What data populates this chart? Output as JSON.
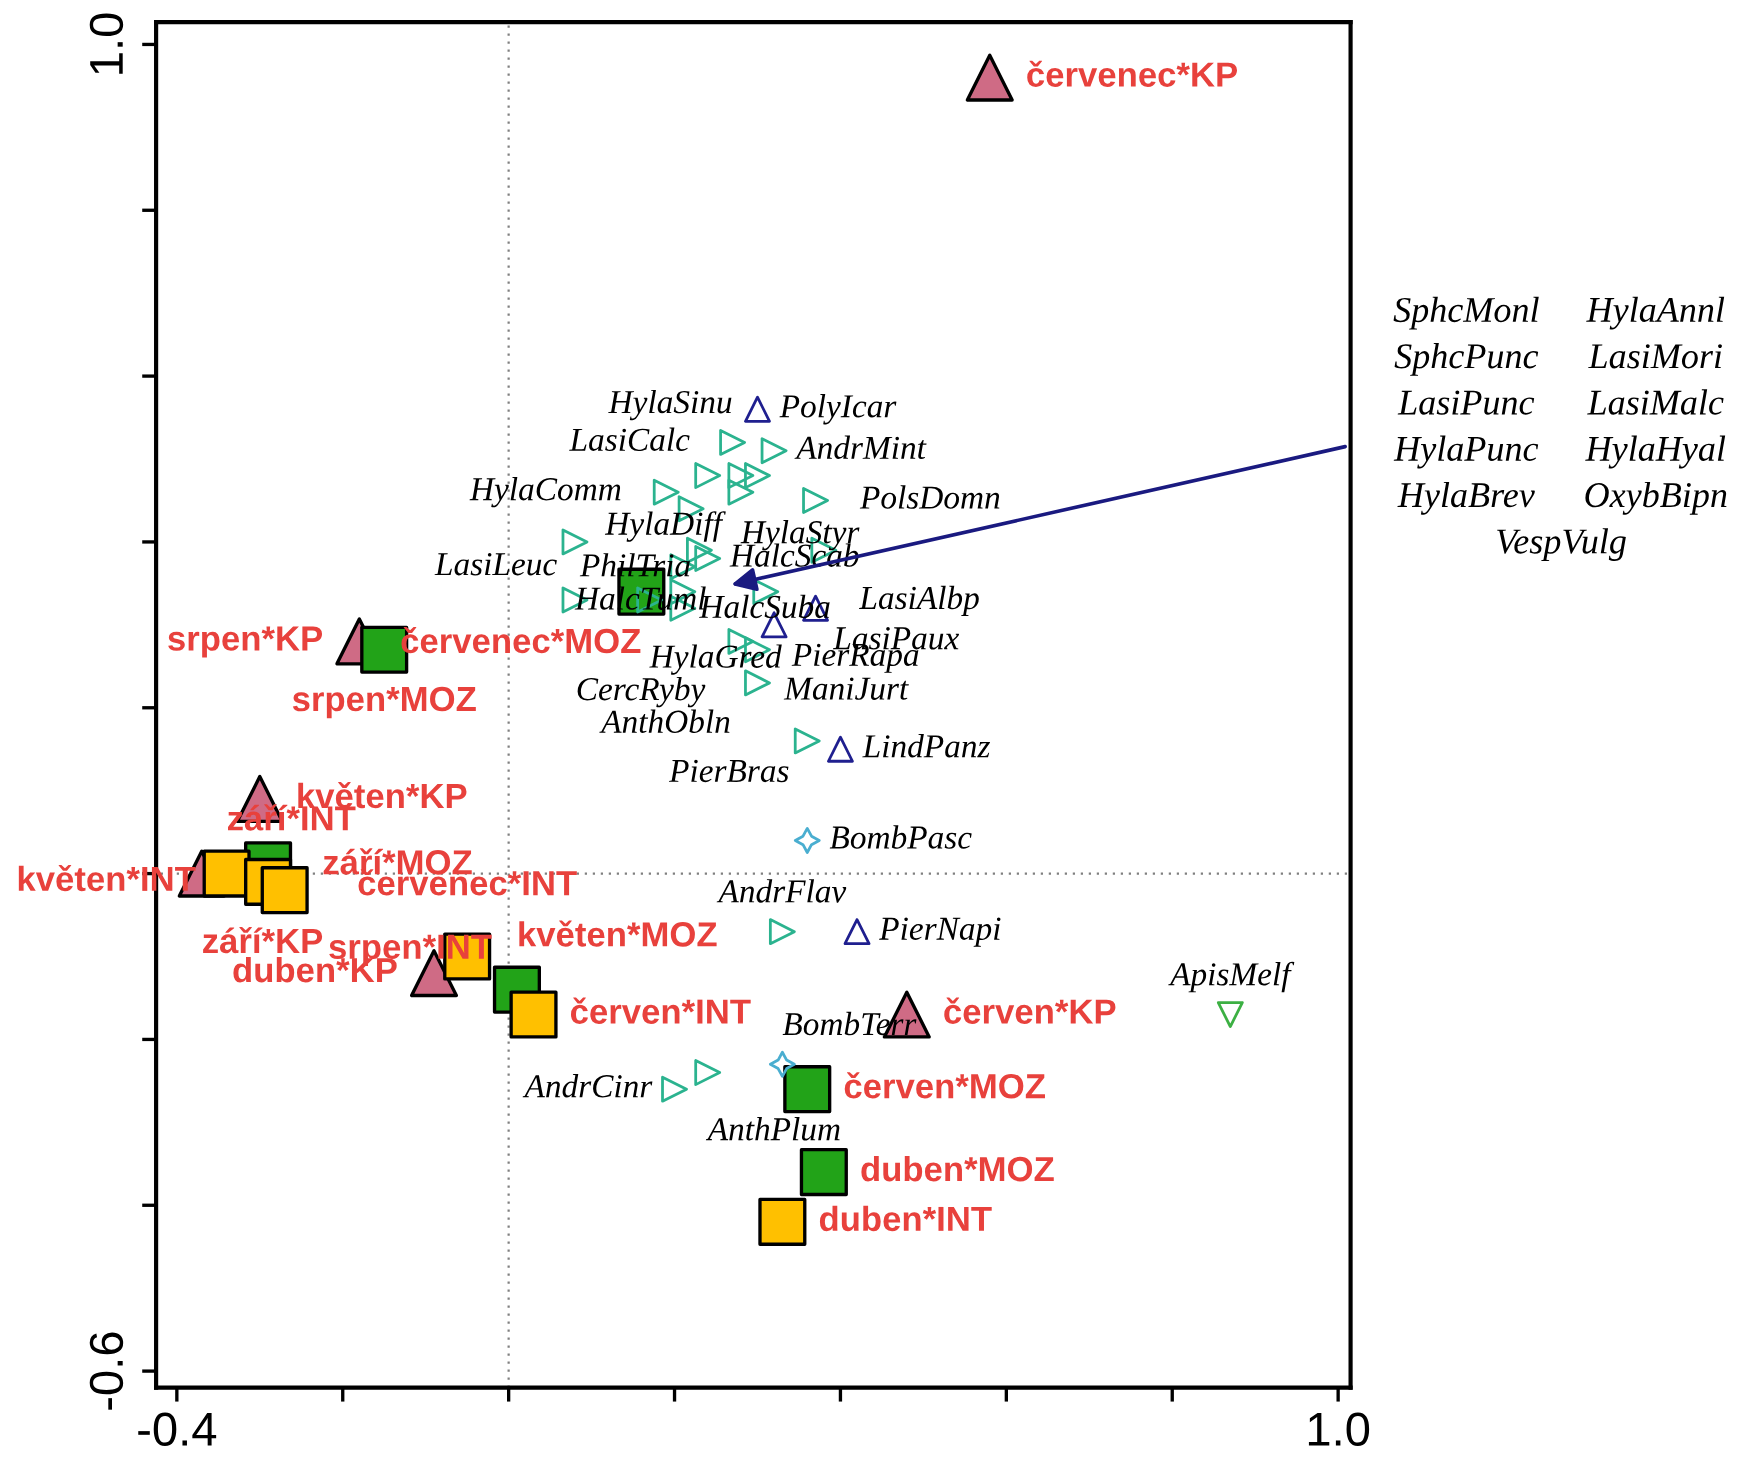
{
  "chart_data": {
    "type": "scatter",
    "xlim": [
      -0.425,
      1.015
    ],
    "ylim": [
      -0.62,
      1.027
    ],
    "xticks": [
      {
        "value": -0.4,
        "label": "-0.4"
      },
      {
        "value": -0.2,
        "label": null
      },
      {
        "value": 0,
        "label": null
      },
      {
        "value": 0.2,
        "label": null
      },
      {
        "value": 0.4,
        "label": null
      },
      {
        "value": 0.6,
        "label": null
      },
      {
        "value": 0.8,
        "label": null
      },
      {
        "value": 1.0,
        "label": "1.0"
      }
    ],
    "yticks": [
      {
        "value": -0.6,
        "label": "-0.6"
      },
      {
        "value": -0.4,
        "label": null
      },
      {
        "value": -0.2,
        "label": null
      },
      {
        "value": 0,
        "label": null
      },
      {
        "value": 0.2,
        "label": null
      },
      {
        "value": 0.4,
        "label": null
      },
      {
        "value": 0.6,
        "label": null
      },
      {
        "value": 0.8,
        "label": null
      },
      {
        "value": 1.0,
        "label": "1.0"
      }
    ],
    "ref_lines": [
      {
        "axis": "x",
        "value": 0,
        "color": "#808080",
        "line_style": "dotted"
      },
      {
        "axis": "y",
        "value": 0,
        "color": "#808080",
        "line_style": "dotted"
      }
    ],
    "series": [
      {
        "type": "scatter",
        "marker": "triangle",
        "color": "#cf6b85",
        "x": [
          0.58,
          -0.18,
          -0.3,
          -0.37,
          -0.09,
          0.48
        ],
        "values": [
          0.96,
          0.28,
          0.09,
          0.0,
          -0.12,
          -0.17
        ],
        "value_labels": [
          "červenec*KP",
          "srpen*KP",
          "květen*KP",
          "září*KP",
          "duben*KP",
          "červen*KP"
        ]
      },
      {
        "type": "scatter",
        "marker": "square",
        "color": "#22a318",
        "x": [
          0.16,
          -0.15,
          -0.29,
          0.01,
          0.36,
          0.38
        ],
        "values": [
          0.34,
          0.27,
          0.01,
          -0.14,
          -0.26,
          -0.36
        ],
        "value_labels": [
          "červenec*MOZ",
          "srpen*MOZ",
          "září*MOZ",
          "květen*MOZ",
          "červen*MOZ",
          "duben*MOZ"
        ]
      },
      {
        "type": "scatter",
        "marker": "square",
        "color": "#ffc000",
        "x": [
          -0.34,
          -0.29,
          -0.27,
          -0.05,
          0.03,
          0.33
        ],
        "values": [
          0.0,
          -0.01,
          -0.02,
          -0.1,
          -0.17,
          -0.42
        ],
        "value_labels": [
          "září*INT",
          "květen*INT",
          "srpen*INT",
          "červenec*INT",
          "červen*INT",
          "duben*INT"
        ]
      },
      {
        "type": "scatter",
        "marker": "triangle-right",
        "color": "#2bb38f",
        "x": [
          0.24,
          0.27,
          0.32,
          0.28,
          0.3,
          0.28,
          0.19,
          0.22,
          0.37,
          0.23,
          0.24,
          0.21,
          0.21,
          0.21,
          0.17,
          0.08,
          0.08,
          0.31,
          0.38,
          0.28,
          0.3,
          0.3,
          0.36,
          0.33,
          0.2,
          0.24
        ],
        "values": [
          0.48,
          0.52,
          0.51,
          0.48,
          0.48,
          0.46,
          0.46,
          0.44,
          0.45,
          0.39,
          0.38,
          0.37,
          0.34,
          0.32,
          0.33,
          0.33,
          0.4,
          0.34,
          0.39,
          0.28,
          0.27,
          0.23,
          0.16,
          -0.07,
          -0.26,
          -0.24
        ],
        "value_labels": [
          "LasiCalc",
          "HylaSinu",
          "AndrMint",
          "HylaStyr",
          "HylaDiff",
          null,
          "HylaComm",
          "PhilTria",
          "PolsDomn",
          "HalcSuba",
          "HalcScab",
          null,
          null,
          null,
          "HylaGred",
          "LasiLeuc",
          "HalcTuml",
          null,
          "LasiAlbp",
          "CercRyby",
          "ManiJurt",
          "AnthObln",
          "PierBras",
          "AndrFlav",
          "AndrCinr",
          "AnthPlum"
        ]
      },
      {
        "type": "scatter",
        "marker": "triangle-open",
        "color": "#1f1f8f",
        "x": [
          0.3,
          0.37,
          0.32,
          0.4,
          0.42
        ],
        "values": [
          0.56,
          0.32,
          0.3,
          0.15,
          -0.07
        ],
        "value_labels": [
          "PolyIcar",
          "LasiPaux",
          "PierRapa",
          "LindPanz",
          "PierNapi"
        ]
      },
      {
        "type": "scatter",
        "marker": "triangle-down",
        "color": "#3cb043",
        "x": [
          0.87
        ],
        "values": [
          -0.17
        ],
        "value_labels": [
          "ApisMelf"
        ]
      },
      {
        "type": "scatter",
        "marker": "star",
        "color": "#4aaed0",
        "x": [
          0.36,
          0.33
        ],
        "values": [
          0.04,
          -0.23
        ],
        "value_labels": [
          "BombPasc",
          "BombTerr"
        ]
      }
    ],
    "annotations": [
      "SphcMonl",
      "HylaAnnl",
      "SphcPunc",
      "LasiMori",
      "LasiPunc",
      "LasiMalc",
      "HylaPunc",
      "HylaHyal",
      "HylaBrev",
      "OxybBipn",
      "VespVulg"
    ]
  }
}
